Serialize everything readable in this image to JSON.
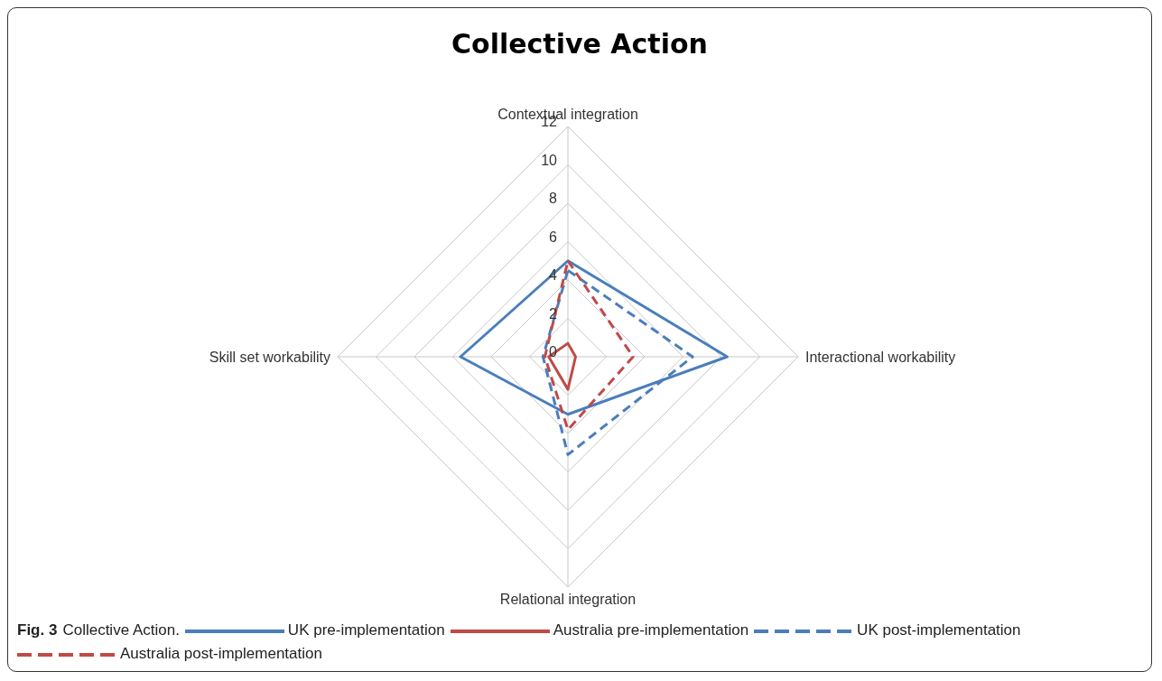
{
  "chart_data": {
    "type": "radar",
    "title": "Collective Action",
    "categories": [
      "Contextual integration",
      "Interactional workability",
      "Relational integration",
      "Skill set workability"
    ],
    "series": [
      {
        "name": "UK pre-implementation",
        "color": "#4a7ebb",
        "line_style": "solid",
        "values": [
          5,
          8.3,
          3,
          5.6
        ]
      },
      {
        "name": "Australia pre-implementation",
        "color": "#be4b48",
        "line_style": "solid",
        "values": [
          0.7,
          0.4,
          1.7,
          1
        ]
      },
      {
        "name": "UK post-implementation",
        "color": "#4a7ebb",
        "line_style": "dashed",
        "values": [
          4.5,
          6.5,
          5.1,
          1.3
        ]
      },
      {
        "name": "Australia post-implementation",
        "color": "#be4b48",
        "line_style": "dashed",
        "values": [
          5,
          3.4,
          3.8,
          1.2
        ]
      }
    ],
    "ylim": [
      0,
      12
    ],
    "yticks": [
      0,
      2,
      4,
      6,
      8,
      10,
      12
    ],
    "grid": true,
    "legend": "bottom",
    "marker": "none",
    "annotations": [
      "Fig. 3",
      "Collective Action."
    ]
  }
}
